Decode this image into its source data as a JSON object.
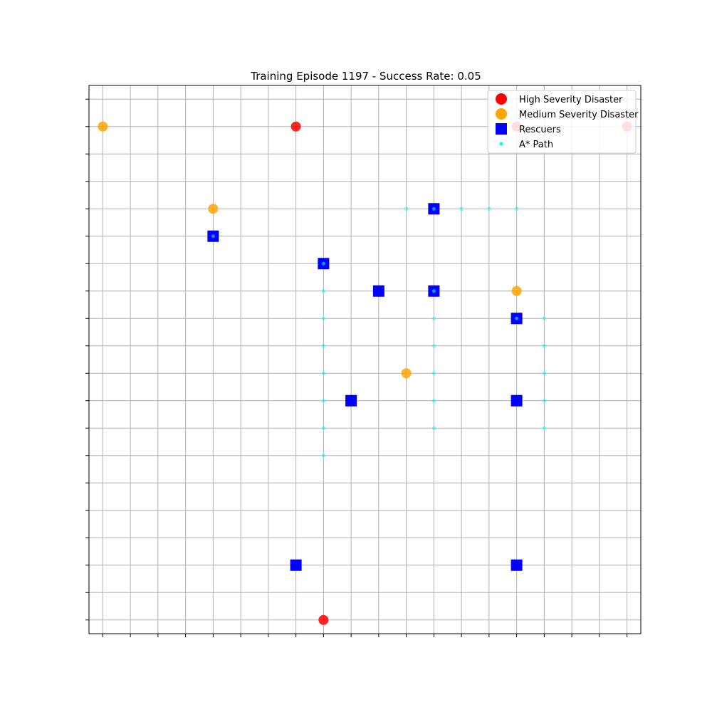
{
  "chart_data": {
    "type": "scatter",
    "title": "Training Episode 1197 - Success Rate: 0.05",
    "xlabel": "",
    "ylabel": "",
    "xlim": [
      -0.5,
      19.5
    ],
    "ylim": [
      -0.5,
      19.5
    ],
    "x_ticks": [
      0,
      1,
      2,
      3,
      4,
      5,
      6,
      7,
      8,
      9,
      10,
      11,
      12,
      13,
      14,
      15,
      16,
      17,
      18,
      19
    ],
    "y_ticks": [
      0,
      1,
      2,
      3,
      4,
      5,
      6,
      7,
      8,
      9,
      10,
      11,
      12,
      13,
      14,
      15,
      16,
      17,
      18,
      19
    ],
    "tick_labels_visible": false,
    "grid": true,
    "legend_placement": "top-right",
    "series": [
      {
        "name": "High Severity Disaster",
        "marker": "circle",
        "color": "#ff0000",
        "points": [
          [
            7,
            18
          ],
          [
            15,
            18
          ],
          [
            19,
            18
          ],
          [
            8,
            0
          ]
        ]
      },
      {
        "name": "Medium Severity Disaster",
        "marker": "circle",
        "color": "#ffa500",
        "points": [
          [
            0,
            18
          ],
          [
            4,
            15
          ],
          [
            15,
            12
          ],
          [
            11,
            9
          ]
        ]
      },
      {
        "name": "Rescuers",
        "marker": "square",
        "color": "#0000ff",
        "points": [
          [
            12,
            15
          ],
          [
            4,
            14
          ],
          [
            8,
            13
          ],
          [
            10,
            12
          ],
          [
            12,
            12
          ],
          [
            15,
            11
          ],
          [
            9,
            8
          ],
          [
            15,
            8
          ],
          [
            7,
            2
          ],
          [
            15,
            2
          ]
        ]
      },
      {
        "name": "A* Path",
        "marker": "dot",
        "color": "#00ffff",
        "points": [
          [
            11,
            15
          ],
          [
            12,
            15
          ],
          [
            13,
            15
          ],
          [
            14,
            15
          ],
          [
            15,
            15
          ],
          [
            4,
            14
          ],
          [
            8,
            13
          ],
          [
            8,
            12
          ],
          [
            8,
            11
          ],
          [
            8,
            10
          ],
          [
            8,
            9
          ],
          [
            8,
            8
          ],
          [
            8,
            7
          ],
          [
            8,
            6
          ],
          [
            12,
            12
          ],
          [
            12,
            11
          ],
          [
            12,
            10
          ],
          [
            12,
            9
          ],
          [
            12,
            8
          ],
          [
            12,
            7
          ],
          [
            15,
            11
          ],
          [
            16,
            11
          ],
          [
            16,
            10
          ],
          [
            16,
            9
          ],
          [
            16,
            8
          ],
          [
            16,
            7
          ]
        ]
      }
    ]
  }
}
